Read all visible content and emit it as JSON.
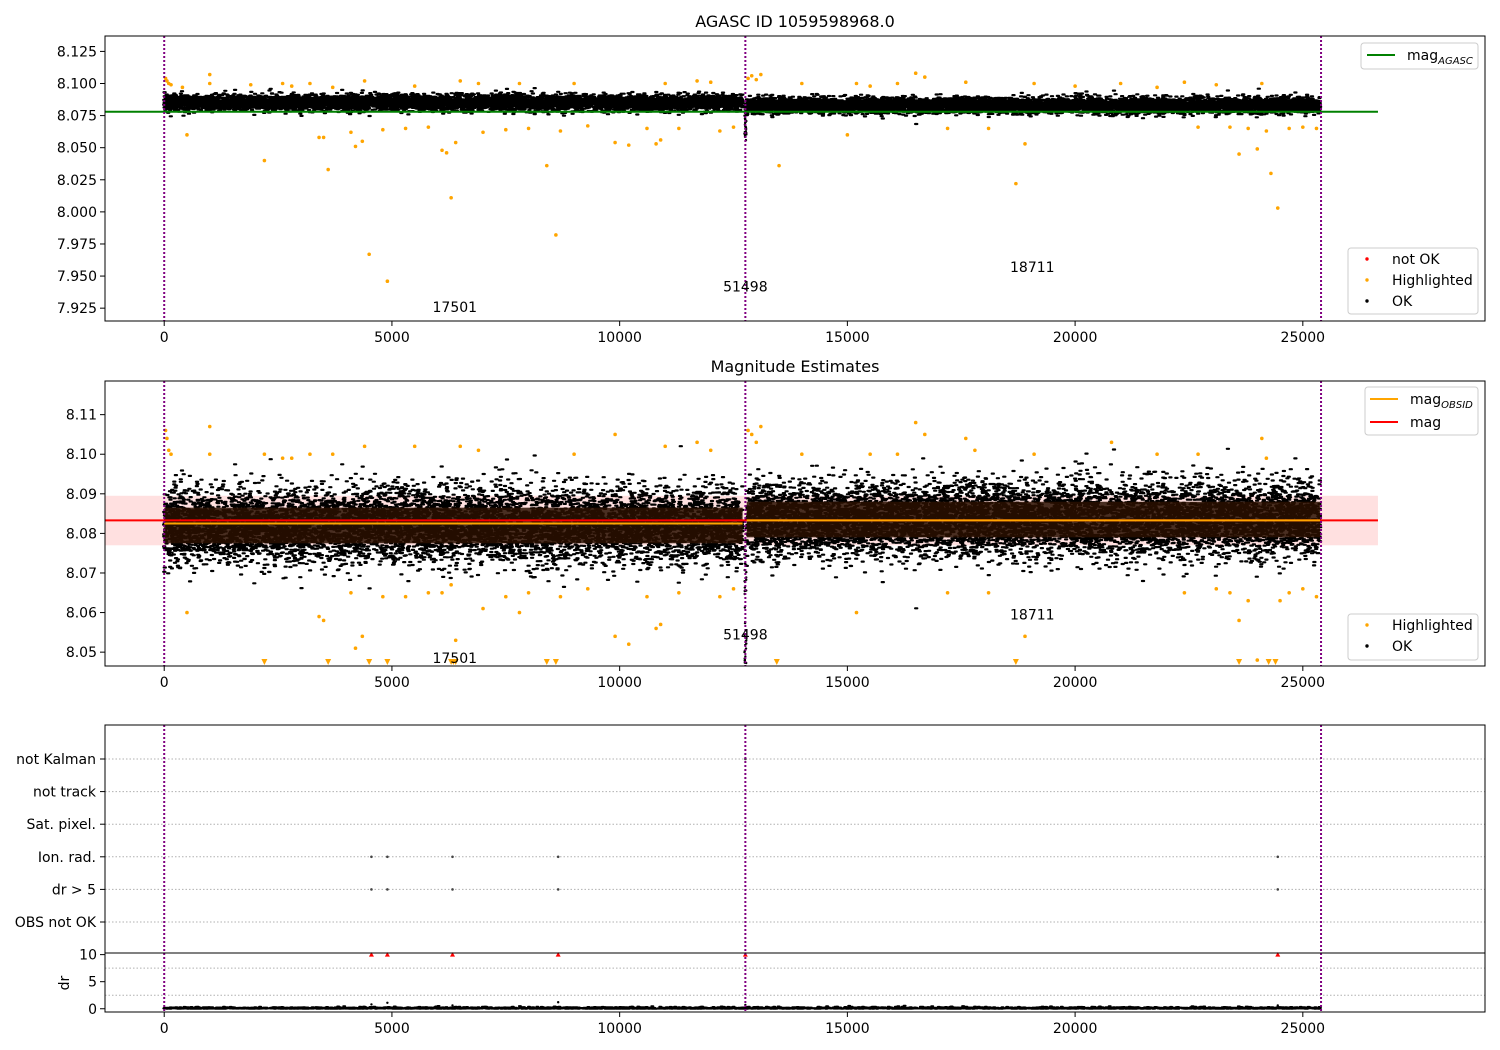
{
  "chart_data": [
    {
      "type": "scatter",
      "title": "AGASC ID 1059598968.0",
      "xlim": [
        -1300,
        29000
      ],
      "ylim": [
        7.915,
        8.137
      ],
      "xticks": [
        0,
        5000,
        10000,
        15000,
        20000,
        25000
      ],
      "yticks": [
        "7.925",
        "7.950",
        "7.975",
        "8.000",
        "8.025",
        "8.050",
        "8.075",
        "8.100",
        "8.125"
      ],
      "ytick_values": [
        7.925,
        7.95,
        7.975,
        8.0,
        8.025,
        8.05,
        8.075,
        8.1,
        8.125
      ],
      "obs_boundaries": [
        0,
        12760,
        25400
      ],
      "obs_labels": [
        {
          "text": "17501",
          "x": 6380,
          "y": 7.926
        },
        {
          "text": "51498",
          "x": 12760,
          "y": 7.942
        },
        {
          "text": "18711",
          "x": 19060,
          "y": 7.957
        }
      ],
      "lines": [
        {
          "name": "mag",
          "subscript": "AGASC",
          "value": 8.078,
          "x": [
            -1300,
            26650
          ],
          "color": "#008000"
        }
      ],
      "series": [
        {
          "name": "OK",
          "color": "#000000",
          "clusters": [
            {
              "x": [
                0,
                12700
              ],
              "y_center": 8.085,
              "y_spread": 0.0055
            },
            {
              "x": [
                12790,
                25380
              ],
              "y_center": 8.083,
              "y_spread": 0.0055
            }
          ]
        },
        {
          "name": "Highlighted",
          "color": "#ffa500",
          "points": [
            [
              30,
              8.104
            ],
            [
              60,
              8.102
            ],
            [
              100,
              8.1
            ],
            [
              150,
              8.099
            ],
            [
              400,
              8.097
            ],
            [
              500,
              8.06
            ],
            [
              1000,
              8.107
            ],
            [
              1000,
              8.1
            ],
            [
              1900,
              8.099
            ],
            [
              2200,
              8.04
            ],
            [
              2600,
              8.1
            ],
            [
              2800,
              8.098
            ],
            [
              3200,
              8.1
            ],
            [
              3400,
              8.058
            ],
            [
              3500,
              8.058
            ],
            [
              3600,
              8.033
            ],
            [
              3700,
              8.097
            ],
            [
              4100,
              8.062
            ],
            [
              4200,
              8.051
            ],
            [
              4350,
              8.055
            ],
            [
              4400,
              8.102
            ],
            [
              4500,
              7.967
            ],
            [
              4800,
              8.064
            ],
            [
              4900,
              7.946
            ],
            [
              5300,
              8.065
            ],
            [
              5500,
              8.098
            ],
            [
              5800,
              8.066
            ],
            [
              6100,
              8.048
            ],
            [
              6200,
              8.046
            ],
            [
              6300,
              8.011
            ],
            [
              6400,
              8.054
            ],
            [
              6500,
              8.102
            ],
            [
              6900,
              8.1
            ],
            [
              7000,
              8.062
            ],
            [
              7500,
              8.064
            ],
            [
              7800,
              8.1
            ],
            [
              8000,
              8.065
            ],
            [
              8400,
              8.036
            ],
            [
              8600,
              7.982
            ],
            [
              8700,
              8.063
            ],
            [
              9000,
              8.1
            ],
            [
              9300,
              8.067
            ],
            [
              9900,
              8.054
            ],
            [
              10200,
              8.052
            ],
            [
              10600,
              8.065
            ],
            [
              10800,
              8.053
            ],
            [
              10900,
              8.056
            ],
            [
              11000,
              8.1
            ],
            [
              11300,
              8.065
            ],
            [
              11700,
              8.102
            ],
            [
              12000,
              8.101
            ],
            [
              12200,
              8.063
            ],
            [
              12500,
              8.066
            ],
            [
              12820,
              8.104
            ],
            [
              12900,
              8.106
            ],
            [
              13000,
              8.103
            ],
            [
              13100,
              8.107
            ],
            [
              13500,
              8.036
            ],
            [
              14000,
              8.1
            ],
            [
              15000,
              8.06
            ],
            [
              15200,
              8.1
            ],
            [
              15500,
              8.098
            ],
            [
              16100,
              8.1
            ],
            [
              16500,
              8.108
            ],
            [
              16700,
              8.105
            ],
            [
              17200,
              8.065
            ],
            [
              17600,
              8.101
            ],
            [
              18100,
              8.065
            ],
            [
              18700,
              8.022
            ],
            [
              18900,
              8.053
            ],
            [
              19100,
              8.1
            ],
            [
              20000,
              8.098
            ],
            [
              21000,
              8.1
            ],
            [
              21800,
              8.097
            ],
            [
              22400,
              8.101
            ],
            [
              22700,
              8.066
            ],
            [
              23100,
              8.099
            ],
            [
              23400,
              8.066
            ],
            [
              23600,
              8.045
            ],
            [
              23800,
              8.065
            ],
            [
              24000,
              8.049
            ],
            [
              24100,
              8.1
            ],
            [
              24200,
              8.063
            ],
            [
              24300,
              8.03
            ],
            [
              24450,
              8.003
            ],
            [
              24700,
              8.065
            ],
            [
              25000,
              8.066
            ],
            [
              25300,
              8.065
            ]
          ]
        },
        {
          "name": "not OK",
          "color": "#ff0000",
          "points": []
        }
      ],
      "legends": [
        {
          "position": "top-right",
          "entries": [
            {
              "name": "mag",
              "subscript": "AGASC",
              "kind": "line",
              "color": "#008000"
            }
          ]
        },
        {
          "position": "bottom-right",
          "entries": [
            {
              "name": "not OK",
              "kind": "dot",
              "color": "#ff0000"
            },
            {
              "name": "Highlighted",
              "kind": "dot",
              "color": "#ffa500"
            },
            {
              "name": "OK",
              "kind": "dot",
              "color": "#000000"
            }
          ]
        }
      ]
    },
    {
      "type": "scatter",
      "title": "Magnitude Estimates",
      "xlim": [
        -1300,
        29000
      ],
      "ylim": [
        8.0465,
        8.1185
      ],
      "xticks": [
        0,
        5000,
        10000,
        15000,
        20000,
        25000
      ],
      "yticks": [
        "8.05",
        "8.06",
        "8.07",
        "8.08",
        "8.09",
        "8.10",
        "8.11"
      ],
      "ytick_values": [
        8.05,
        8.06,
        8.07,
        8.08,
        8.09,
        8.1,
        8.11
      ],
      "obs_boundaries": [
        0,
        12760,
        25400
      ],
      "obs_labels": [
        {
          "text": "17501",
          "x": 6380,
          "y": 8.0485
        },
        {
          "text": "51498",
          "x": 12760,
          "y": 8.0545
        },
        {
          "text": "18711",
          "x": 19060,
          "y": 8.0595
        }
      ],
      "band": {
        "y": [
          8.077,
          8.0895
        ],
        "x": [
          -1300,
          26650
        ],
        "color": "#ffcccc"
      },
      "lines": [
        {
          "name": "mag",
          "value": 8.0833,
          "x": [
            -1300,
            26650
          ],
          "color": "#ff0000"
        },
        {
          "name": "mag",
          "subscript": "OBSID",
          "segments": [
            {
              "x": [
                0,
                12700
              ],
              "value": 8.0825
            },
            {
              "x": [
                12790,
                25380
              ],
              "value": 8.0833
            }
          ],
          "color": "#ffa500"
        }
      ],
      "series": [
        {
          "name": "OK",
          "color": "#000000",
          "clusters": [
            {
              "x": [
                0,
                12700
              ],
              "y_center": 8.082,
              "y_spread": 0.0085
            },
            {
              "x": [
                12790,
                25380
              ],
              "y_center": 8.0835,
              "y_spread": 0.0085
            }
          ]
        },
        {
          "name": "Highlighted",
          "color": "#ffa500",
          "points": [
            [
              30,
              8.106
            ],
            [
              60,
              8.104
            ],
            [
              100,
              8.101
            ],
            [
              150,
              8.1
            ],
            [
              500,
              8.06
            ],
            [
              1000,
              8.107
            ],
            [
              1000,
              8.1
            ],
            [
              2200,
              8.1
            ],
            [
              2600,
              8.099
            ],
            [
              2800,
              8.099
            ],
            [
              3200,
              8.1
            ],
            [
              3400,
              8.059
            ],
            [
              3500,
              8.058
            ],
            [
              3700,
              8.1
            ],
            [
              4100,
              8.065
            ],
            [
              4200,
              8.051
            ],
            [
              4350,
              8.054
            ],
            [
              4400,
              8.102
            ],
            [
              4800,
              8.064
            ],
            [
              5300,
              8.064
            ],
            [
              5500,
              8.102
            ],
            [
              5800,
              8.065
            ],
            [
              6100,
              8.065
            ],
            [
              6300,
              8.067
            ],
            [
              6400,
              8.053
            ],
            [
              6500,
              8.102
            ],
            [
              6900,
              8.101
            ],
            [
              7000,
              8.061
            ],
            [
              7500,
              8.064
            ],
            [
              7800,
              8.06
            ],
            [
              8000,
              8.065
            ],
            [
              8700,
              8.064
            ],
            [
              9000,
              8.1
            ],
            [
              9300,
              8.066
            ],
            [
              9900,
              8.054
            ],
            [
              9900,
              8.105
            ],
            [
              10200,
              8.052
            ],
            [
              10600,
              8.064
            ],
            [
              10800,
              8.056
            ],
            [
              10900,
              8.057
            ],
            [
              11000,
              8.102
            ],
            [
              11300,
              8.065
            ],
            [
              11700,
              8.103
            ],
            [
              12000,
              8.101
            ],
            [
              12200,
              8.064
            ],
            [
              12500,
              8.066
            ],
            [
              12820,
              8.106
            ],
            [
              12900,
              8.105
            ],
            [
              13000,
              8.103
            ],
            [
              13100,
              8.107
            ],
            [
              14000,
              8.1
            ],
            [
              15200,
              8.06
            ],
            [
              15500,
              8.1
            ],
            [
              16100,
              8.1
            ],
            [
              16500,
              8.108
            ],
            [
              16700,
              8.105
            ],
            [
              17200,
              8.065
            ],
            [
              17600,
              8.104
            ],
            [
              17800,
              8.101
            ],
            [
              18100,
              8.065
            ],
            [
              18900,
              8.054
            ],
            [
              19100,
              8.1
            ],
            [
              20800,
              8.103
            ],
            [
              21800,
              8.1
            ],
            [
              22400,
              8.065
            ],
            [
              22700,
              8.1
            ],
            [
              23100,
              8.066
            ],
            [
              23400,
              8.065
            ],
            [
              23600,
              8.058
            ],
            [
              23800,
              8.063
            ],
            [
              24000,
              8.048
            ],
            [
              24100,
              8.104
            ],
            [
              24200,
              8.099
            ],
            [
              24500,
              8.063
            ],
            [
              24700,
              8.065
            ],
            [
              25000,
              8.066
            ],
            [
              25300,
              8.064
            ]
          ]
        }
      ],
      "offscale_markers": {
        "color": "#ffa500",
        "x": [
          2200,
          3600,
          4500,
          4900,
          6300,
          6350,
          6400,
          8400,
          8600,
          13450,
          18700,
          23600,
          24250,
          24400
        ]
      },
      "legends": [
        {
          "position": "top-right",
          "entries": [
            {
              "name": "mag",
              "subscript": "OBSID",
              "kind": "line",
              "color": "#ffa500"
            },
            {
              "name": "mag",
              "kind": "line",
              "color": "#ff0000"
            }
          ]
        },
        {
          "position": "bottom-right",
          "entries": [
            {
              "name": "Highlighted",
              "kind": "dot",
              "color": "#ffa500"
            },
            {
              "name": "OK",
              "kind": "dot",
              "color": "#000000"
            }
          ]
        }
      ]
    },
    {
      "type": "scatter",
      "title": "",
      "xlim": [
        -1300,
        29000
      ],
      "xticks": [
        0,
        5000,
        10000,
        15000,
        20000,
        25000
      ],
      "categories": [
        "not Kalman",
        "not track",
        "Sat. pixel.",
        "Ion. rad.",
        "dr > 5",
        "OBS not OK"
      ],
      "obs_boundaries": [
        0,
        12760,
        25400
      ],
      "flag_points": [
        {
          "category": "not Kalman",
          "x": [
            12760
          ]
        },
        {
          "category": "Ion. rad.",
          "x": [
            4550,
            4900,
            6330,
            8650,
            24450
          ]
        },
        {
          "category": "dr > 5",
          "x": [
            4550,
            4900,
            6330,
            8650,
            24450
          ]
        }
      ]
    },
    {
      "type": "scatter",
      "title": "",
      "ylabel": "dr",
      "xlim": [
        -1300,
        29000
      ],
      "ylim": [
        -0.6,
        10.3
      ],
      "yticks": [
        "0",
        "5",
        "10"
      ],
      "ytick_values": [
        0,
        5,
        10
      ],
      "xticks": [
        0,
        5000,
        10000,
        15000,
        20000,
        25000
      ],
      "obs_boundaries": [
        0,
        12760,
        25400
      ],
      "clip_value": 10,
      "clipped_points": {
        "color": "#ff0000",
        "x": [
          4550,
          4900,
          6330,
          8650,
          12760,
          24450
        ]
      },
      "series": [
        {
          "name": "dr",
          "color": "#000000",
          "x": [
            0,
            25380
          ],
          "typical": 0.15
        }
      ]
    }
  ]
}
